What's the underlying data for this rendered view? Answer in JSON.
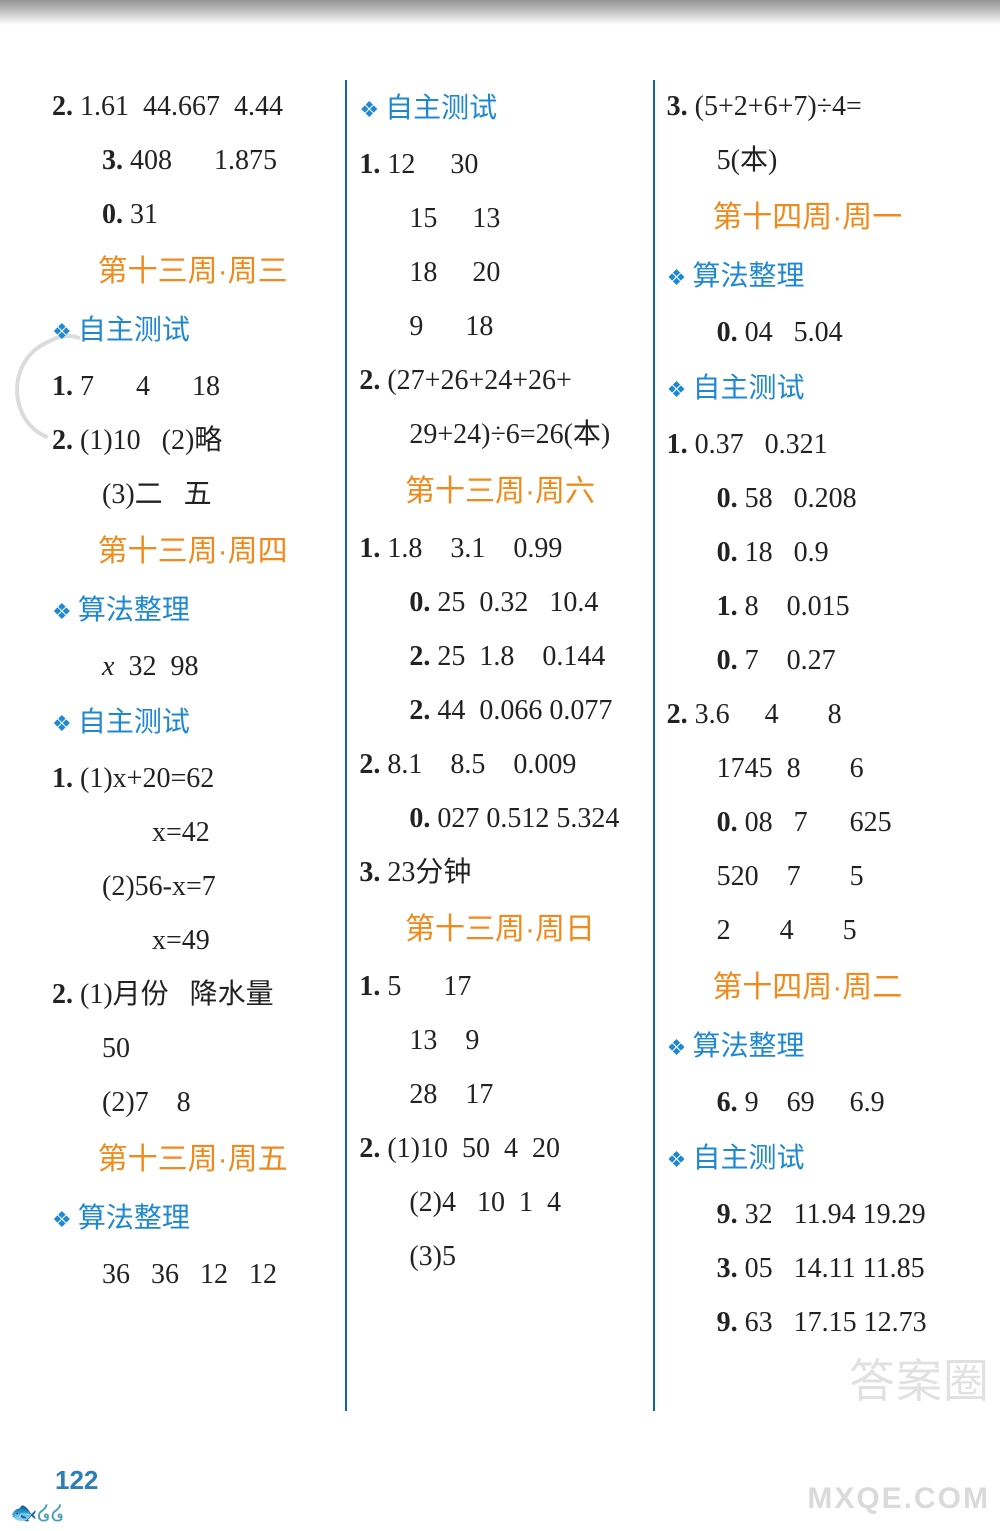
{
  "page_number": "122",
  "watermark_right": "答案圈",
  "watermark_bottom": "MXQE.COM",
  "columns": [
    {
      "items": [
        {
          "type": "line",
          "text": "2. 1.61  44.667  4.44"
        },
        {
          "type": "line",
          "text": "3.408      1.875",
          "indent": 1
        },
        {
          "type": "line",
          "text": "0.31",
          "indent": 1
        },
        {
          "type": "heading",
          "text": "第十三周·周三"
        },
        {
          "type": "sub",
          "text": "自主测试"
        },
        {
          "type": "line",
          "text": "1. 7      4      18"
        },
        {
          "type": "line",
          "text": "2. (1)10   (2)略"
        },
        {
          "type": "line",
          "text": "(3)二   五",
          "indent": 1
        },
        {
          "type": "heading",
          "text": "第十三周·周四"
        },
        {
          "type": "sub",
          "text": "算法整理"
        },
        {
          "type": "line",
          "text": "x  32  98",
          "indent": 1,
          "italicFirst": true
        },
        {
          "type": "sub",
          "text": "自主测试"
        },
        {
          "type": "line",
          "text": "1. (1)x+20=62"
        },
        {
          "type": "line",
          "text": "x=42",
          "indent": 2
        },
        {
          "type": "line",
          "text": "(2)56-x=7",
          "indent": 1
        },
        {
          "type": "line",
          "text": "x=49",
          "indent": 2
        },
        {
          "type": "line",
          "text": "2. (1)月份   降水量"
        },
        {
          "type": "line",
          "text": "50",
          "indent": 1
        },
        {
          "type": "line",
          "text": "(2)7    8",
          "indent": 1
        },
        {
          "type": "heading",
          "text": "第十三周·周五"
        },
        {
          "type": "sub",
          "text": "算法整理"
        },
        {
          "type": "line",
          "text": "36   36   12   12",
          "indent": 1
        }
      ]
    },
    {
      "items": [
        {
          "type": "sub",
          "text": "自主测试"
        },
        {
          "type": "line",
          "text": "1. 12     30"
        },
        {
          "type": "line",
          "text": "15     13",
          "indent": 1
        },
        {
          "type": "line",
          "text": "18     20",
          "indent": 1
        },
        {
          "type": "line",
          "text": "9      18",
          "indent": 1
        },
        {
          "type": "line",
          "text": "2. (27+26+24+26+"
        },
        {
          "type": "line",
          "text": "29+24)÷6=26(本)",
          "indent": 1
        },
        {
          "type": "heading",
          "text": "第十三周·周六"
        },
        {
          "type": "line",
          "text": "1. 1.8    3.1    0.99"
        },
        {
          "type": "line",
          "text": "0.25  0.32   10.4",
          "indent": 1
        },
        {
          "type": "line",
          "text": "2.25  1.8    0.144",
          "indent": 1
        },
        {
          "type": "line",
          "text": "2.44  0.066 0.077",
          "indent": 1
        },
        {
          "type": "line",
          "text": "2. 8.1    8.5    0.009"
        },
        {
          "type": "line",
          "text": "0.027 0.512 5.324",
          "indent": 1
        },
        {
          "type": "line",
          "text": "3. 23分钟"
        },
        {
          "type": "heading",
          "text": "第十三周·周日"
        },
        {
          "type": "line",
          "text": "1. 5      17"
        },
        {
          "type": "line",
          "text": "13    9",
          "indent": 1
        },
        {
          "type": "line",
          "text": "28    17",
          "indent": 1
        },
        {
          "type": "line",
          "text": "2. (1)10  50  4  20"
        },
        {
          "type": "line",
          "text": "(2)4   10  1  4",
          "indent": 1
        },
        {
          "type": "line",
          "text": "(3)5",
          "indent": 1
        }
      ]
    },
    {
      "items": [
        {
          "type": "line",
          "text": "3. (5+2+6+7)÷4="
        },
        {
          "type": "line",
          "text": "5(本)",
          "indent": 1
        },
        {
          "type": "heading",
          "text": "第十四周·周一"
        },
        {
          "type": "sub",
          "text": "算法整理"
        },
        {
          "type": "line",
          "text": "0.04   5.04",
          "indent": 1
        },
        {
          "type": "sub",
          "text": "自主测试"
        },
        {
          "type": "line",
          "text": "1. 0.37   0.321"
        },
        {
          "type": "line",
          "text": "0.58   0.208",
          "indent": 1
        },
        {
          "type": "line",
          "text": "0.18   0.9",
          "indent": 1
        },
        {
          "type": "line",
          "text": "1.8    0.015",
          "indent": 1
        },
        {
          "type": "line",
          "text": "0.7    0.27",
          "indent": 1
        },
        {
          "type": "line",
          "text": "2. 3.6     4       8"
        },
        {
          "type": "line",
          "text": "1745  8       6",
          "indent": 1
        },
        {
          "type": "line",
          "text": "0.08   7      625",
          "indent": 1
        },
        {
          "type": "line",
          "text": "520    7       5",
          "indent": 1
        },
        {
          "type": "line",
          "text": "2       4       5",
          "indent": 1
        },
        {
          "type": "heading",
          "text": "第十四周·周二"
        },
        {
          "type": "sub",
          "text": "算法整理"
        },
        {
          "type": "line",
          "text": "6.9    69     6.9",
          "indent": 1
        },
        {
          "type": "sub",
          "text": "自主测试"
        },
        {
          "type": "line",
          "text": "9.32   11.94 19.29",
          "indent": 1
        },
        {
          "type": "line",
          "text": "3.05   14.11 11.85",
          "indent": 1
        },
        {
          "type": "line",
          "text": "9.63   17.15 12.73",
          "indent": 1
        }
      ]
    }
  ]
}
